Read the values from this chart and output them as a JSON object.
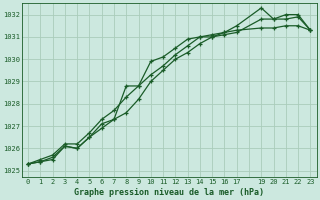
{
  "bg_color": "#cce8df",
  "grid_color_major": "#aaccbb",
  "grid_color_minor": "#bbddd0",
  "line_color": "#1a5c28",
  "xlabel": "Graphe pression niveau de la mer (hPa)",
  "xlim": [
    -0.5,
    23.5
  ],
  "ylim": [
    1024.7,
    1032.5
  ],
  "yticks": [
    1025,
    1026,
    1027,
    1028,
    1029,
    1030,
    1031,
    1032
  ],
  "series1_x": [
    0,
    1,
    2,
    3,
    4,
    5,
    6,
    7,
    8,
    9,
    10,
    11,
    12,
    13,
    14,
    15,
    16,
    17,
    19,
    20,
    21,
    22,
    23
  ],
  "series1_y": [
    1025.3,
    1025.4,
    1025.5,
    1026.1,
    1026.0,
    1026.5,
    1027.1,
    1027.3,
    1028.8,
    1028.8,
    1029.9,
    1030.1,
    1030.5,
    1030.9,
    1031.0,
    1031.0,
    1031.2,
    1031.5,
    1032.3,
    1031.8,
    1032.0,
    1032.0,
    1031.3
  ],
  "series2_x": [
    0,
    1,
    2,
    3,
    4,
    5,
    6,
    7,
    8,
    9,
    10,
    11,
    12,
    13,
    14,
    15,
    16,
    17,
    19,
    20,
    21,
    22,
    23
  ],
  "series2_y": [
    1025.3,
    1025.4,
    1025.6,
    1026.1,
    1026.0,
    1026.5,
    1026.9,
    1027.3,
    1027.6,
    1028.2,
    1029.0,
    1029.5,
    1030.0,
    1030.3,
    1030.7,
    1031.0,
    1031.1,
    1031.2,
    1031.8,
    1031.8,
    1031.8,
    1031.9,
    1031.3
  ],
  "series3_x": [
    0,
    1,
    2,
    3,
    4,
    5,
    6,
    7,
    8,
    9,
    10,
    11,
    12,
    13,
    14,
    15,
    16,
    17,
    19,
    20,
    21,
    22,
    23
  ],
  "series3_y": [
    1025.3,
    1025.5,
    1025.7,
    1026.2,
    1026.2,
    1026.7,
    1027.3,
    1027.7,
    1028.3,
    1028.8,
    1029.3,
    1029.7,
    1030.2,
    1030.6,
    1031.0,
    1031.1,
    1031.2,
    1031.3,
    1031.4,
    1031.4,
    1031.5,
    1031.5,
    1031.3
  ]
}
